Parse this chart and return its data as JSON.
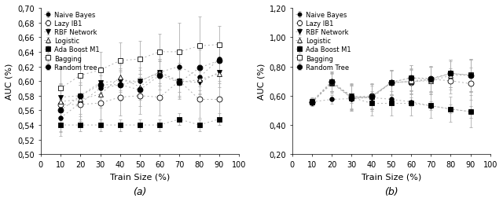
{
  "x": [
    10,
    20,
    30,
    40,
    50,
    60,
    70,
    80,
    90
  ],
  "legend_labels_a": [
    "Naive Bayes",
    "Lazy IB1",
    "RBF Network",
    "Logistic",
    "Ada Boost M1",
    "Bagging",
    "Random tree"
  ],
  "legend_labels_b": [
    "Naive Bayes",
    "Lazy IB1",
    "RBF Network",
    "Logistic",
    "Ada Boost M1",
    "Bagging",
    "Random Tree"
  ],
  "markers": [
    "o",
    "o",
    "v",
    "^",
    "s",
    "s",
    "o"
  ],
  "fillstyles": [
    "full",
    "none",
    "full",
    "none",
    "full",
    "none",
    "full"
  ],
  "markersizes": [
    4,
    5,
    5,
    5,
    5,
    5,
    5
  ],
  "a_y": [
    [
      0.55,
      0.57,
      0.59,
      0.595,
      0.6,
      0.612,
      0.62,
      0.605,
      0.63
    ],
    [
      0.568,
      0.568,
      0.57,
      0.578,
      0.58,
      0.578,
      0.6,
      0.575,
      0.575
    ],
    [
      0.578,
      0.58,
      0.598,
      0.6,
      0.6,
      0.612,
      0.6,
      0.598,
      0.612
    ],
    [
      0.572,
      0.575,
      0.582,
      0.605,
      0.592,
      0.612,
      0.598,
      0.602,
      0.61
    ],
    [
      0.54,
      0.54,
      0.54,
      0.54,
      0.54,
      0.54,
      0.548,
      0.54,
      0.548
    ],
    [
      0.59,
      0.608,
      0.615,
      0.628,
      0.63,
      0.64,
      0.64,
      0.648,
      0.65
    ],
    [
      0.56,
      0.58,
      0.595,
      0.595,
      0.588,
      0.608,
      0.598,
      0.618,
      0.628
    ]
  ],
  "a_yerr": [
    [
      0.025,
      0.025,
      0.018,
      0.018,
      0.018,
      0.018,
      0.018,
      0.018,
      0.018
    ],
    [
      0.028,
      0.03,
      0.03,
      0.025,
      0.025,
      0.025,
      0.025,
      0.025,
      0.025
    ],
    [
      0.018,
      0.015,
      0.015,
      0.015,
      0.015,
      0.015,
      0.015,
      0.015,
      0.015
    ],
    [
      0.025,
      0.02,
      0.018,
      0.018,
      0.018,
      0.018,
      0.018,
      0.02,
      0.018
    ],
    [
      0.008,
      0.008,
      0.008,
      0.008,
      0.008,
      0.008,
      0.008,
      0.008,
      0.008
    ],
    [
      0.03,
      0.035,
      0.025,
      0.025,
      0.025,
      0.025,
      0.04,
      0.04,
      0.025
    ],
    [
      0.03,
      0.028,
      0.025,
      0.022,
      0.022,
      0.02,
      0.02,
      0.025,
      0.02
    ]
  ],
  "a_ylim": [
    0.5,
    0.7
  ],
  "a_yticks": [
    0.5,
    0.52,
    0.54,
    0.56,
    0.58,
    0.6,
    0.62,
    0.64,
    0.66,
    0.68,
    0.7
  ],
  "b_y": [
    [
      0.558,
      0.575,
      0.58,
      0.588,
      0.575,
      0.558,
      0.53,
      0.51,
      0.49
    ],
    [
      0.558,
      0.695,
      0.592,
      0.598,
      0.69,
      0.692,
      0.712,
      0.702,
      0.682
    ],
    [
      0.552,
      0.692,
      0.598,
      0.582,
      0.692,
      0.722,
      0.712,
      0.752,
      0.738
    ],
    [
      0.558,
      0.682,
      0.592,
      0.592,
      0.688,
      0.698,
      0.702,
      0.738,
      0.742
    ],
    [
      0.562,
      0.698,
      0.588,
      0.548,
      0.548,
      0.548,
      0.532,
      0.508,
      0.492
    ],
    [
      0.558,
      0.688,
      0.582,
      0.592,
      0.688,
      0.702,
      0.712,
      0.752,
      0.742
    ],
    [
      0.558,
      0.698,
      0.582,
      0.592,
      0.692,
      0.722,
      0.718,
      0.752,
      0.738
    ]
  ],
  "b_yerr": [
    [
      0.025,
      0.03,
      0.03,
      0.03,
      0.03,
      0.03,
      0.03,
      0.03,
      0.04
    ],
    [
      0.025,
      0.065,
      0.085,
      0.085,
      0.085,
      0.085,
      0.085,
      0.085,
      0.11
    ],
    [
      0.025,
      0.065,
      0.085,
      0.085,
      0.085,
      0.085,
      0.085,
      0.095,
      0.11
    ],
    [
      0.025,
      0.065,
      0.085,
      0.085,
      0.085,
      0.085,
      0.095,
      0.095,
      0.11
    ],
    [
      0.025,
      0.065,
      0.085,
      0.085,
      0.085,
      0.085,
      0.085,
      0.085,
      0.11
    ],
    [
      0.025,
      0.065,
      0.085,
      0.085,
      0.085,
      0.085,
      0.085,
      0.095,
      0.11
    ],
    [
      0.025,
      0.065,
      0.085,
      0.085,
      0.085,
      0.085,
      0.085,
      0.095,
      0.11
    ]
  ],
  "b_ylim": [
    0.2,
    1.2
  ],
  "b_yticks": [
    0.2,
    0.4,
    0.6,
    0.8,
    1.0,
    1.2
  ],
  "xlabel": "Train Size (%)",
  "ylabel": "AUC (%)",
  "xlim": [
    0,
    100
  ],
  "xticks": [
    0,
    10,
    20,
    30,
    40,
    50,
    60,
    70,
    80,
    90,
    100
  ],
  "caption_a": "(a)",
  "caption_b": "(b)",
  "line_color": "#b0b0b0",
  "bg_color": "#ffffff",
  "fontsize_tick": 7,
  "fontsize_label": 8,
  "fontsize_legend": 6,
  "fontsize_caption": 9
}
